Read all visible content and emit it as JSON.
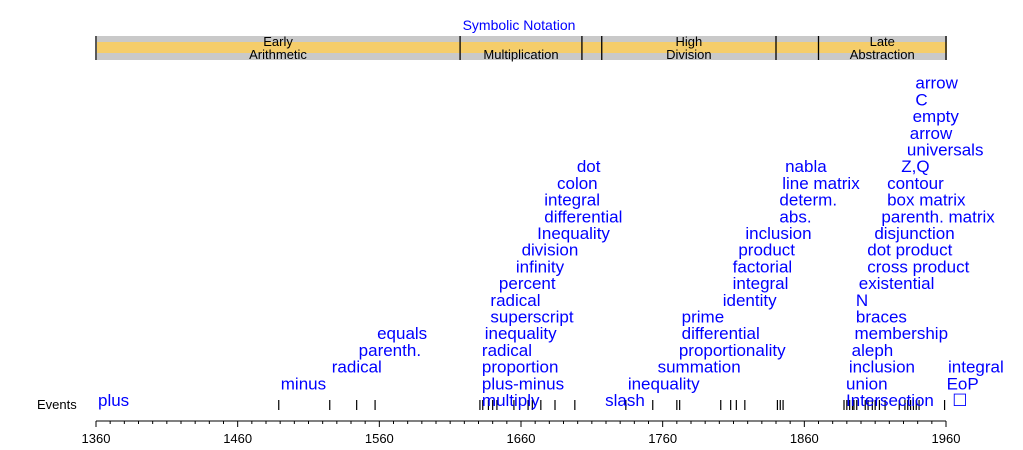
{
  "chart_data": {
    "type": "timeline",
    "title": "",
    "row_label": "Events",
    "colors": {
      "event_text": "#0000ff",
      "era_band_gold": "#f5cd6a",
      "era_band_gray": "#c9c9c9"
    },
    "xlim": [
      1360,
      1960
    ],
    "x_ticks": [
      1360,
      1460,
      1560,
      1660,
      1760,
      1860,
      1960
    ],
    "x_ticks_labels": [
      "1360",
      "1460",
      "1560",
      "1660",
      "1760",
      "1860",
      "1960"
    ],
    "top_label": "Symbolic Notation",
    "eras": [
      {
        "start": 1360,
        "end": 1617,
        "line1": "Early",
        "line2": "Arithmetic"
      },
      {
        "start": 1617,
        "end": 1703,
        "line1": "",
        "line2": "Multiplication"
      },
      {
        "start": 1703,
        "end": 1717,
        "line1": "",
        "line2": ""
      },
      {
        "start": 1717,
        "end": 1840,
        "line1": "High",
        "line2": "Division"
      },
      {
        "start": 1840,
        "end": 1870,
        "line1": "",
        "line2": ""
      },
      {
        "start": 1870,
        "end": 1960,
        "line1": "Late",
        "line2": "Abstraction"
      }
    ],
    "event_ticks": [
      1489,
      1525,
      1544,
      1557,
      1631,
      1633,
      1637,
      1640,
      1643,
      1655,
      1659,
      1665,
      1668,
      1674,
      1684,
      1698,
      1734,
      1753,
      1770,
      1772,
      1801,
      1808,
      1812,
      1818,
      1841,
      1843,
      1845,
      1888,
      1890,
      1892,
      1894,
      1895,
      1897,
      1903,
      1905,
      1908,
      1910,
      1913,
      1917,
      1927,
      1931,
      1933,
      1935,
      1937,
      1939,
      1941,
      1959
    ],
    "events": [
      {
        "label": "plus",
        "year": 1360,
        "level": 0
      },
      {
        "label": "minus",
        "year": 1489,
        "level": 1
      },
      {
        "label": "radical",
        "year": 1525,
        "level": 2
      },
      {
        "label": "parenth.",
        "year": 1544,
        "level": 3
      },
      {
        "label": "equals",
        "year": 1557,
        "level": 4
      },
      {
        "label": "multiply",
        "year": 1631,
        "level": 0
      },
      {
        "label": "plus-minus",
        "year": 1631,
        "level": 1
      },
      {
        "label": "proportion",
        "year": 1631,
        "level": 2
      },
      {
        "label": "radical",
        "year": 1631,
        "level": 3
      },
      {
        "label": "inequality",
        "year": 1633,
        "level": 4
      },
      {
        "label": "superscript",
        "year": 1637,
        "level": 5
      },
      {
        "label": "radical",
        "year": 1637,
        "level": 6
      },
      {
        "label": "percent",
        "year": 1643,
        "level": 7
      },
      {
        "label": "infinity",
        "year": 1655,
        "level": 8
      },
      {
        "label": "division",
        "year": 1659,
        "level": 9
      },
      {
        "label": "Inequality",
        "year": 1670,
        "level": 10
      },
      {
        "label": "differential",
        "year": 1675,
        "level": 11
      },
      {
        "label": "integral",
        "year": 1675,
        "level": 12
      },
      {
        "label": "colon",
        "year": 1684,
        "level": 13
      },
      {
        "label": "dot",
        "year": 1698,
        "level": 14
      },
      {
        "label": "slash",
        "year": 1718,
        "level": 0
      },
      {
        "label": "inequality",
        "year": 1734,
        "level": 1
      },
      {
        "label": "summation",
        "year": 1755,
        "level": 2
      },
      {
        "label": "proportionality",
        "year": 1770,
        "level": 3
      },
      {
        "label": "differential",
        "year": 1772,
        "level": 4
      },
      {
        "label": "prime",
        "year": 1772,
        "level": 5
      },
      {
        "label": "identity",
        "year": 1801,
        "level": 6
      },
      {
        "label": "integral",
        "year": 1808,
        "level": 7
      },
      {
        "label": "factorial",
        "year": 1808,
        "level": 8
      },
      {
        "label": "product",
        "year": 1812,
        "level": 9
      },
      {
        "label": "inclusion",
        "year": 1817,
        "level": 10
      },
      {
        "label": "abs.",
        "year": 1841,
        "level": 11
      },
      {
        "label": "determ.",
        "year": 1841,
        "level": 12
      },
      {
        "label": "line matrix",
        "year": 1843,
        "level": 13
      },
      {
        "label": "nabla",
        "year": 1845,
        "level": 14
      },
      {
        "label": "Intersection",
        "year": 1888,
        "level": 0
      },
      {
        "label": "union",
        "year": 1888,
        "level": 1
      },
      {
        "label": "inclusion",
        "year": 1890,
        "level": 2
      },
      {
        "label": "aleph",
        "year": 1892,
        "level": 3
      },
      {
        "label": "membership",
        "year": 1894,
        "level": 4
      },
      {
        "label": "braces",
        "year": 1895,
        "level": 5
      },
      {
        "label": "N",
        "year": 1895,
        "level": 6
      },
      {
        "label": "existential",
        "year": 1897,
        "level": 7
      },
      {
        "label": "cross product",
        "year": 1903,
        "level": 8
      },
      {
        "label": "dot product",
        "year": 1903,
        "level": 9
      },
      {
        "label": "disjunction",
        "year": 1908,
        "level": 10
      },
      {
        "label": "parenth. matrix",
        "year": 1913,
        "level": 11
      },
      {
        "label": "box matrix",
        "year": 1917,
        "level": 12
      },
      {
        "label": "contour",
        "year": 1917,
        "level": 13
      },
      {
        "label": "Z,Q",
        "year": 1927,
        "level": 14
      },
      {
        "label": "universals",
        "year": 1931,
        "level": 15
      },
      {
        "label": "arrow",
        "year": 1933,
        "level": 16
      },
      {
        "label": "empty",
        "year": 1935,
        "level": 17
      },
      {
        "label": "C",
        "year": 1937,
        "level": 18
      },
      {
        "label": "arrow",
        "year": 1937,
        "level": 19
      },
      {
        "label": "integral",
        "year": 1960,
        "level": 2
      },
      {
        "label": "EoP",
        "year": 1959,
        "level": 1
      },
      {
        "label": "☐",
        "year": 1963,
        "level": 0
      }
    ]
  }
}
